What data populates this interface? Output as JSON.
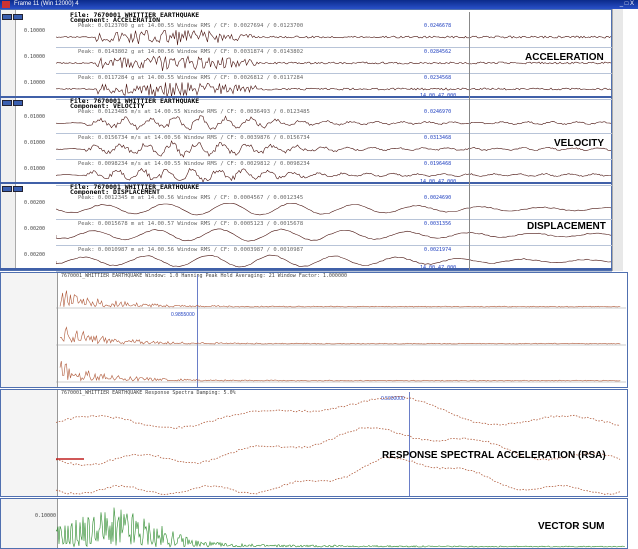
{
  "window": {
    "title": "Frame 11 (Win 12000) 4",
    "controls": "_ □ X"
  },
  "records": [
    {
      "file": "File: 7670001 WHITTIER EARTHQUAKE",
      "component": "Component: ACCELERATION",
      "label": "ACCELERATION",
      "rows": [
        {
          "header": "Peak: 0.0123700 g at 14.00.55    Window RMS / CF: 0.0027694 / 0.0123700",
          "left_value": "0.10000",
          "right_value": "0.0246678"
        },
        {
          "header": "Peak: 0.0143802 g at 14.00.56    Window RMS / CF: 0.0031874 / 0.0143802",
          "left_value": "0.10000",
          "right_value": "0.0284562"
        },
        {
          "header": "Peak: 0.0117284 g at 14.00.55    Window RMS / CF: 0.0026812 / 0.0117284",
          "left_value": "0.10000",
          "right_value": "0.0234568"
        }
      ],
      "time_label": "14.00.47.000"
    },
    {
      "file": "File: 7670001 WHITTIER EARTHQUAKE",
      "component": "Component: VELOCITY",
      "label": "VELOCITY",
      "rows": [
        {
          "header": "Peak: 0.0123485 m/s at 14.00.55    Window RMS / CF: 0.0036493 / 0.0123485",
          "left_value": "0.01000",
          "right_value": "0.0246970"
        },
        {
          "header": "Peak: 0.0156734 m/s at 14.00.56    Window RMS / CF: 0.0039876 / 0.0156734",
          "left_value": "0.01000",
          "right_value": "0.0313468"
        },
        {
          "header": "Peak: 0.0098234 m/s at 14.00.55    Window RMS / CF: 0.0029812 / 0.0098234",
          "left_value": "0.01000",
          "right_value": "0.0196468"
        }
      ],
      "time_label": "14.00.47.000"
    },
    {
      "file": "File: 7670001 WHITTIER EARTHQUAKE",
      "component": "Component: DISPLACEMENT",
      "label": "DISPLACEMENT",
      "rows": [
        {
          "header": "Peak: 0.0012345 m at 14.00.56    Window RMS / CF: 0.0004567 / 0.0012345",
          "left_value": "0.00200",
          "right_value": "0.0024690"
        },
        {
          "header": "Peak: 0.0015678 m at 14.00.57    Window RMS / CF: 0.0005123 / 0.0015678",
          "left_value": "0.00200",
          "right_value": "0.0031356"
        },
        {
          "header": "Peak: 0.0010987 m at 14.00.56    Window RMS / CF: 0.0003987 / 0.0010987",
          "left_value": "0.00200",
          "right_value": "0.0021974"
        }
      ],
      "time_label": "14.00.47.000"
    }
  ],
  "fft_panel": {
    "header": "7670001_WHITTIER EARTHQUAKE     Window: 1.0 Hanning   Peak Hold Averaging: 21   Window Factor: 1.000000",
    "marker": "0.9855000",
    "rows": 3
  },
  "rsa_panel": {
    "header": "7670001_WHITTIER EARTHQUAKE    Response Spectra   Damping: 5.0%",
    "label": "RESPONSE SPECTRAL ACCELERATION (RSA)",
    "marker": "0.5000000"
  },
  "vector_panel": {
    "label": "VECTOR SUM",
    "y_value": "0.10000"
  },
  "colors": {
    "trace": "#4a1410",
    "trace_light": "#b05a3a",
    "green_trace": "#2a8a2a",
    "marker_blue": "#2040c0",
    "titlebar": "#0b2a8a"
  }
}
